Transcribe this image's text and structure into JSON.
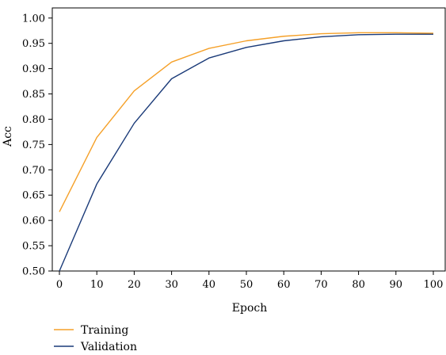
{
  "chart_data": {
    "type": "line",
    "xlabel": "Epoch",
    "ylabel": "Acc",
    "xlim": [
      0,
      100
    ],
    "ylim": [
      0.5,
      1.02
    ],
    "xticks": [
      "0",
      "10",
      "20",
      "30",
      "40",
      "50",
      "60",
      "70",
      "80",
      "90",
      "100"
    ],
    "yticks": [
      "0.50",
      "0.55",
      "0.60",
      "0.65",
      "0.70",
      "0.75",
      "0.80",
      "0.85",
      "0.90",
      "0.95",
      "1.00"
    ],
    "legend": "bottom-left",
    "x": [
      0,
      10,
      20,
      30,
      40,
      50,
      60,
      70,
      80,
      90,
      100
    ],
    "series": [
      {
        "name": "Training",
        "color": "#f5a028",
        "values": [
          0.617,
          0.764,
          0.856,
          0.913,
          0.94,
          0.955,
          0.964,
          0.969,
          0.971,
          0.971,
          0.97
        ]
      },
      {
        "name": "Validation",
        "color": "#1a3a78",
        "values": [
          0.5,
          0.672,
          0.792,
          0.88,
          0.921,
          0.942,
          0.955,
          0.963,
          0.967,
          0.968,
          0.968
        ]
      }
    ]
  }
}
